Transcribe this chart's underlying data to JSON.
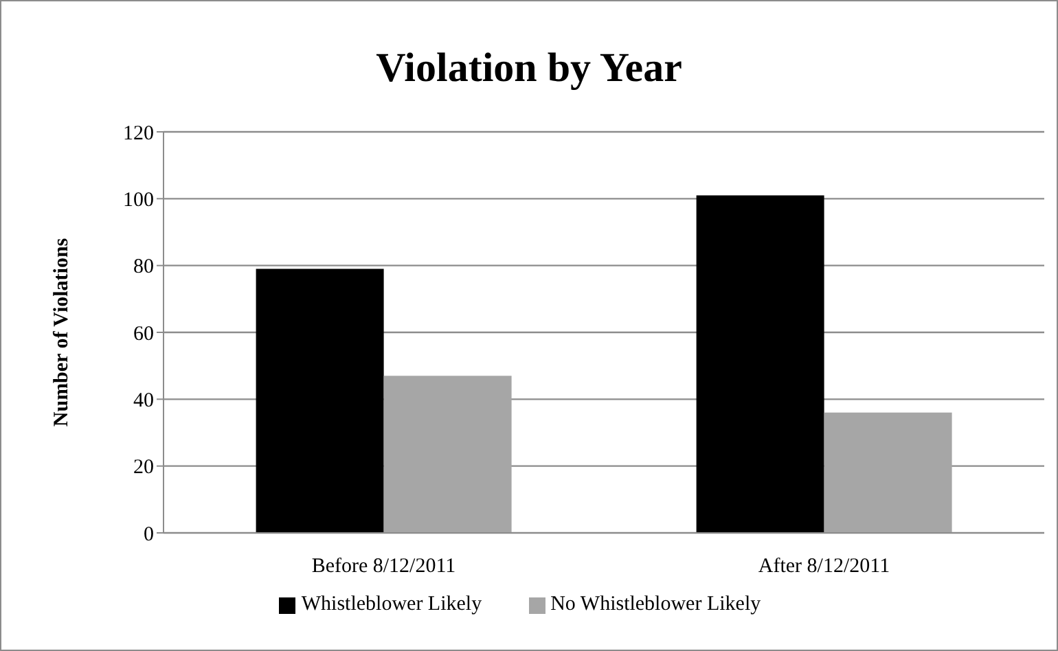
{
  "chart_data": {
    "type": "bar",
    "title": "Violation by Year",
    "ylabel": "Number of Violations",
    "categories": [
      "Before 8/12/2011",
      "After 8/12/2011"
    ],
    "series": [
      {
        "name": "Whistleblower Likely",
        "color": "#000000",
        "values": [
          79,
          101
        ]
      },
      {
        "name": "No Whistleblower Likely",
        "color": "#a6a6a6",
        "values": [
          47,
          36
        ]
      }
    ],
    "ylim": [
      0,
      120
    ],
    "yticks": [
      0,
      20,
      40,
      60,
      80,
      100,
      120
    ],
    "grid": "y",
    "legend": "bottom"
  }
}
